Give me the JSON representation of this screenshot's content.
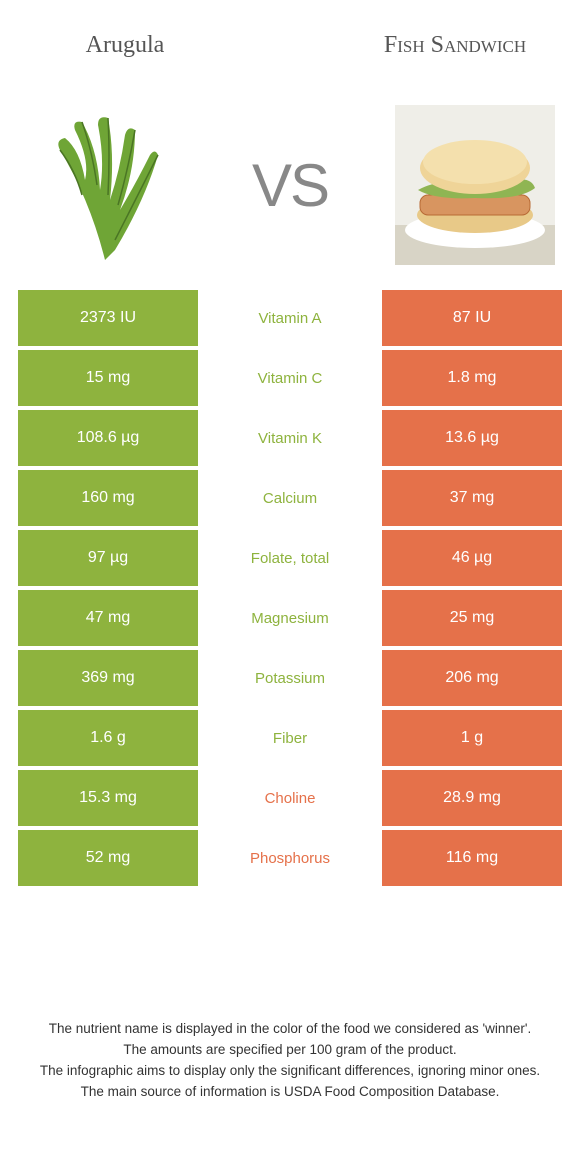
{
  "header": {
    "left": "Arugula",
    "right": "Fish Sandwich"
  },
  "vs": "VS",
  "colors": {
    "green": "#8eb33e",
    "orange": "#e5714a",
    "green_text": "#8eb33e",
    "orange_text": "#e5714a"
  },
  "rows": [
    {
      "left": "2373 IU",
      "mid": "Vitamin A",
      "right": "87 IU",
      "winner": "left"
    },
    {
      "left": "15 mg",
      "mid": "Vitamin C",
      "right": "1.8 mg",
      "winner": "left"
    },
    {
      "left": "108.6 µg",
      "mid": "Vitamin K",
      "right": "13.6 µg",
      "winner": "left"
    },
    {
      "left": "160 mg",
      "mid": "Calcium",
      "right": "37 mg",
      "winner": "left"
    },
    {
      "left": "97 µg",
      "mid": "Folate, total",
      "right": "46 µg",
      "winner": "left"
    },
    {
      "left": "47 mg",
      "mid": "Magnesium",
      "right": "25 mg",
      "winner": "left"
    },
    {
      "left": "369 mg",
      "mid": "Potassium",
      "right": "206 mg",
      "winner": "left"
    },
    {
      "left": "1.6 g",
      "mid": "Fiber",
      "right": "1 g",
      "winner": "left"
    },
    {
      "left": "15.3 mg",
      "mid": "Choline",
      "right": "28.9 mg",
      "winner": "right"
    },
    {
      "left": "52 mg",
      "mid": "Phosphorus",
      "right": "116 mg",
      "winner": "right"
    }
  ],
  "footer": [
    "The nutrient name is displayed in the color of the food we considered as 'winner'.",
    "The amounts are specified per 100 gram of the product.",
    "The infographic aims to display only the significant differences, ignoring minor ones.",
    "The main source of information is USDA Food Composition Database."
  ]
}
